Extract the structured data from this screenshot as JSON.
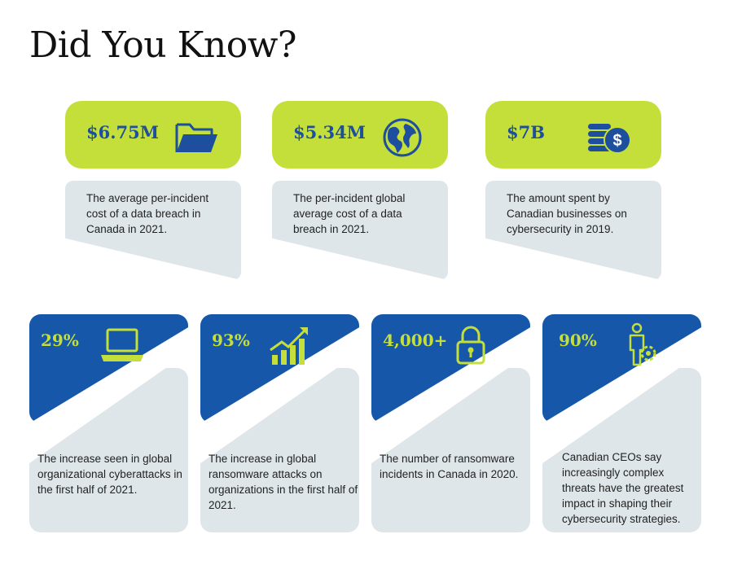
{
  "title": "Did You Know?",
  "colors": {
    "lime": "#c4df3a",
    "blue": "#1657aa",
    "gray_panel": "#dfe6ea",
    "stat_blue": "#1d4f9e"
  },
  "top_stats": [
    {
      "value": "$6.75M",
      "icon": "folder-icon",
      "description": "The average per-incident cost of a data breach in Canada in 2021."
    },
    {
      "value": "$5.34M",
      "icon": "globe-icon",
      "description": "The per-incident global average cost of a data breach in 2021."
    },
    {
      "value": "$7B",
      "icon": "coins-dollar-icon",
      "description": "The amount spent by Canadian businesses on cybersecurity in 2019."
    }
  ],
  "bottom_stats": [
    {
      "value": "29%",
      "icon": "laptop-icon",
      "description": "The increase seen in global organizational cyberattacks in the first half of 2021."
    },
    {
      "value": "93%",
      "icon": "growth-chart-icon",
      "description": "The increase in global ransomware attacks on organizations in the first half of 2021."
    },
    {
      "value": "4,000+",
      "icon": "padlock-icon",
      "description": "The number of ransomware incidents in Canada in 2020."
    },
    {
      "value": "90%",
      "icon": "person-gear-icon",
      "description": "Canadian CEOs say increasingly complex threats have the greatest impact in shaping their cybersecurity strategies."
    }
  ]
}
